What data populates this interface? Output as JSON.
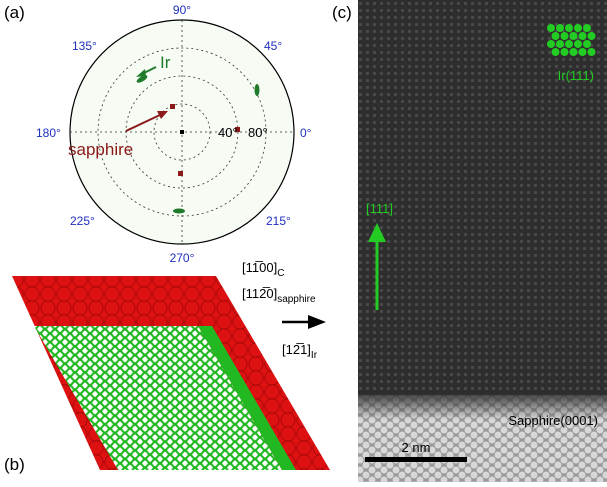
{
  "panel_a": {
    "label": "(a)",
    "azimuth_labels": [
      "90°",
      "45°",
      "135°",
      "180°",
      "0°",
      "225°",
      "215°",
      "270°"
    ],
    "ring_labels": [
      "40°",
      "80°"
    ],
    "annotations": {
      "ir": "Ir",
      "sapphire": "sapphire"
    }
  },
  "panel_b": {
    "label": "(b)",
    "directions": [
      {
        "index": "[11̅00]",
        "subscript": "C"
      },
      {
        "index": "[112̅0]",
        "subscript": "sapphire"
      },
      {
        "index": "[12̅1]",
        "subscript": "Ir"
      }
    ]
  },
  "panel_c": {
    "label": "(c)",
    "structure": "Ir(111)",
    "direction": "[111]",
    "substrate": "Sapphire(0001)",
    "scale_bar": "2 nm"
  }
}
